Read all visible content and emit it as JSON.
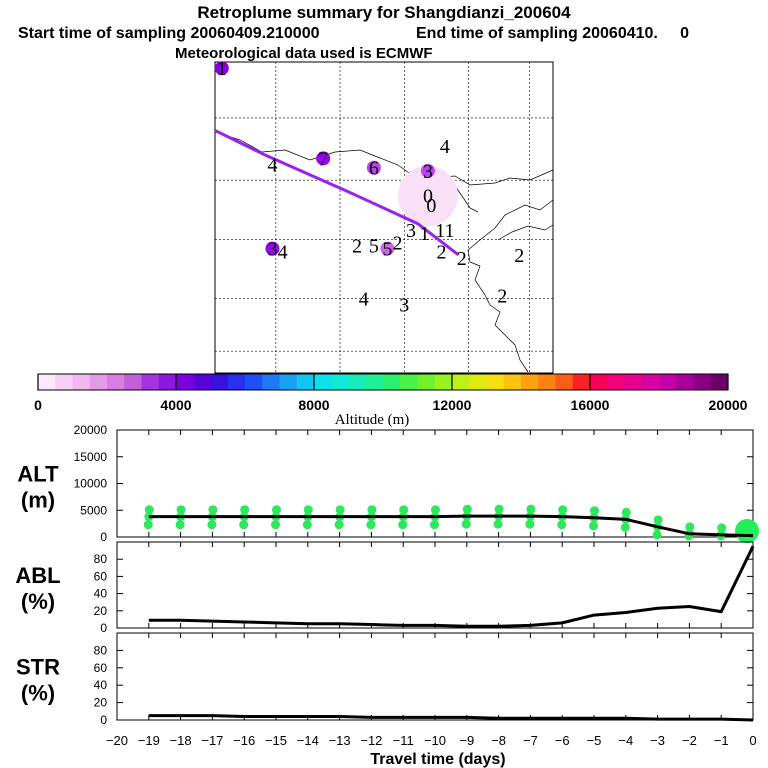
{
  "chart_data": {
    "type": "line",
    "title": "Retroplume summary for Shangdianzi_200604",
    "subtitle_start": "Start time of sampling 20060409.210000",
    "subtitle_end": "End time of sampling 20060410.     0",
    "met_note": "Meteorological data used is ECMWF",
    "map": {
      "plume_numbers": [
        {
          "text": "1",
          "x": 0.02,
          "y": 0.02
        },
        {
          "text": "4",
          "x": 0.17,
          "y": 0.33
        },
        {
          "text": "7",
          "x": 0.32,
          "y": 0.31
        },
        {
          "text": "6",
          "x": 0.47,
          "y": 0.34
        },
        {
          "text": "4",
          "x": 0.68,
          "y": 0.27
        },
        {
          "text": "3",
          "x": 0.63,
          "y": 0.35
        },
        {
          "text": "0",
          "x": 0.63,
          "y": 0.43
        },
        {
          "text": "0",
          "x": 0.64,
          "y": 0.46
        },
        {
          "text": "3",
          "x": 0.58,
          "y": 0.54
        },
        {
          "text": "1",
          "x": 0.62,
          "y": 0.55
        },
        {
          "text": "11",
          "x": 0.68,
          "y": 0.54
        },
        {
          "text": "3",
          "x": 0.17,
          "y": 0.6
        },
        {
          "text": "4",
          "x": 0.2,
          "y": 0.61
        },
        {
          "text": "2",
          "x": 0.42,
          "y": 0.59
        },
        {
          "text": "5",
          "x": 0.47,
          "y": 0.59
        },
        {
          "text": "5",
          "x": 0.51,
          "y": 0.6
        },
        {
          "text": "2",
          "x": 0.54,
          "y": 0.58
        },
        {
          "text": "2",
          "x": 0.67,
          "y": 0.61
        },
        {
          "text": "2",
          "x": 0.73,
          "y": 0.63
        },
        {
          "text": "2",
          "x": 0.9,
          "y": 0.62
        },
        {
          "text": "4",
          "x": 0.44,
          "y": 0.76
        },
        {
          "text": "3",
          "x": 0.56,
          "y": 0.78
        },
        {
          "text": "2",
          "x": 0.85,
          "y": 0.75
        }
      ],
      "plume_dots": [
        {
          "x": 0.02,
          "y": 0.02,
          "color": "#8800dd"
        },
        {
          "x": 0.32,
          "y": 0.31,
          "color": "#9900ee"
        },
        {
          "x": 0.47,
          "y": 0.34,
          "color": "#bb44ee"
        },
        {
          "x": 0.63,
          "y": 0.35,
          "color": "#bb44ee"
        },
        {
          "x": 0.17,
          "y": 0.6,
          "color": "#9900ee"
        },
        {
          "x": 0.51,
          "y": 0.6,
          "color": "#cc66ee"
        }
      ],
      "trajectory": [
        [
          0.0,
          0.22
        ],
        [
          0.15,
          0.3
        ],
        [
          0.4,
          0.42
        ],
        [
          0.6,
          0.52
        ],
        [
          0.72,
          0.62
        ]
      ]
    },
    "colorbar": {
      "label": "Altitude (m)",
      "ticks": [
        "0",
        "4000",
        "8000",
        "12000",
        "16000",
        "20000"
      ],
      "colors": [
        "#fbe8fb",
        "#f6d0f6",
        "#efb8ef",
        "#e59ae8",
        "#d87ee0",
        "#c35fda",
        "#a633dd",
        "#8e17de",
        "#7a00e0",
        "#5a00d8",
        "#3a10e0",
        "#2a30f0",
        "#2050f5",
        "#1f78f5",
        "#1aa0f5",
        "#12c6f2",
        "#0fe0ee",
        "#10e8d8",
        "#16ecb8",
        "#1df096",
        "#2af070",
        "#48f248",
        "#70f22a",
        "#98f222",
        "#c0f01a",
        "#e0ea12",
        "#f6df10",
        "#fbc210",
        "#fca210",
        "#fd8212",
        "#fd5c18",
        "#fa2222",
        "#f8005a",
        "#f20078",
        "#e80090",
        "#d800a0",
        "#c400a8",
        "#a80098",
        "#8a0080",
        "#6c0068"
      ]
    },
    "alt_panel": {
      "ylabel_1": "ALT",
      "ylabel_2": "(m)",
      "ylim": [
        0,
        20000
      ],
      "yticks": [
        "20000",
        "15000",
        "10000",
        "5000",
        "0"
      ],
      "x": [
        -19,
        -18,
        -17,
        -16,
        -15,
        -14,
        -13,
        -12,
        -11,
        -10,
        -9,
        -8,
        -7,
        -6,
        -5,
        -4,
        -3,
        -2,
        -1,
        0
      ],
      "values": [
        3800,
        3800,
        3800,
        3800,
        3800,
        3800,
        3800,
        3800,
        3800,
        3800,
        3900,
        3900,
        3900,
        3800,
        3600,
        3300,
        1900,
        600,
        400,
        250
      ]
    },
    "abl_panel": {
      "ylabel_1": "ABL",
      "ylabel_2": "(%)",
      "ylim": [
        0,
        100
      ],
      "yticks": [
        "80",
        "60",
        "40",
        "20",
        "0"
      ],
      "x": [
        -19,
        -18,
        -17,
        -16,
        -15,
        -14,
        -13,
        -12,
        -11,
        -10,
        -9,
        -8,
        -7,
        -6,
        -5,
        -4,
        -3,
        -2,
        -1,
        0
      ],
      "values": [
        9,
        9,
        8,
        7,
        6,
        5,
        5,
        4,
        3,
        3,
        2,
        2,
        3,
        6,
        15,
        18,
        23,
        25,
        19,
        95
      ]
    },
    "str_panel": {
      "ylabel_1": "STR",
      "ylabel_2": "(%)",
      "ylim": [
        0,
        100
      ],
      "yticks": [
        "80",
        "60",
        "40",
        "20",
        "0"
      ],
      "x": [
        -19,
        -18,
        -17,
        -16,
        -15,
        -14,
        -13,
        -12,
        -11,
        -10,
        -9,
        -8,
        -7,
        -6,
        -5,
        -4,
        -3,
        -2,
        -1,
        0
      ],
      "values": [
        5,
        5,
        5,
        4,
        4,
        4,
        4,
        3,
        3,
        3,
        3,
        2,
        2,
        2,
        2,
        2,
        1,
        1,
        1,
        0
      ]
    },
    "xaxis": {
      "label": "Travel time (days)",
      "xlim": [
        -20,
        0
      ],
      "ticks": [
        "-20",
        "-19",
        "-18",
        "-17",
        "-16",
        "-15",
        "-14",
        "-13",
        "-12",
        "-11",
        "-10",
        "-9",
        "-8",
        "-7",
        "-6",
        "-5",
        "-4",
        "-3",
        "-2",
        "-1",
        "0"
      ]
    }
  }
}
